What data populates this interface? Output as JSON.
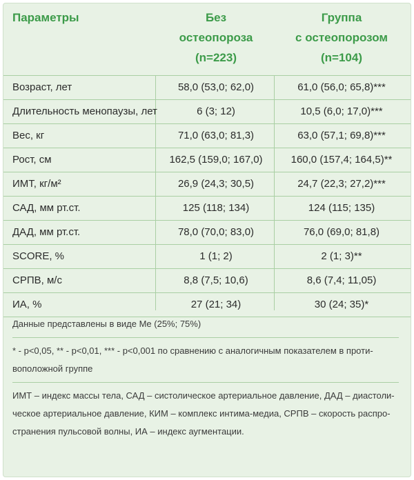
{
  "header": {
    "param": "Параметры",
    "col1": [
      "Без",
      "остеопороза",
      "(n=223)"
    ],
    "col2": [
      "Группа",
      "с остеопорозом",
      "(n=104)"
    ]
  },
  "rows": [
    {
      "param": "Возраст, лет",
      "v1": "58,0 (53,0; 62,0)",
      "v2": "61,0 (56,0; 65,8)***"
    },
    {
      "param": "Длительность менопаузы, лет",
      "v1": "6 (3; 12)",
      "v2": "10,5 (6,0; 17,0)***"
    },
    {
      "param": "Вес, кг",
      "v1": "71,0 (63,0; 81,3)",
      "v2": "63,0 (57,1; 69,8)***"
    },
    {
      "param": "Рост, см",
      "v1": "162,5 (159,0; 167,0)",
      "v2": "160,0 (157,4; 164,5)**"
    },
    {
      "param": "ИМТ, кг/м²",
      "v1": "26,9 (24,3; 30,5)",
      "v2": "24,7 (22,3; 27,2)***"
    },
    {
      "param": "САД, мм рт.ст.",
      "v1": "125 (118; 134)",
      "v2": "124 (115; 135)"
    },
    {
      "param": "ДАД, мм рт.ст.",
      "v1": "78,0 (70,0; 83,0)",
      "v2": "76,0 (69,0; 81,8)"
    },
    {
      "param": "SCORE, %",
      "v1": "1 (1; 2)",
      "v2": "2 (1; 3)**"
    },
    {
      "param": "СРПВ, м/с",
      "v1": "8,8 (7,5; 10,6)",
      "v2": "8,6 (7,4; 11,05)"
    },
    {
      "param": "ИА, %",
      "v1": "27 (21; 34)",
      "v2": "30 (24; 35)*"
    }
  ],
  "notes": {
    "data_format": "Данные представлены в виде Me (25%; 75%)",
    "significance_1": "* - p<0,05, ** - p<0,01, *** - p<0,001 по сравнению с аналогичным показателем в проти-",
    "significance_2": "воположной группе",
    "abbr_1": "ИМТ – индекс массы тела, САД – систолическое артериальное давление, ДАД – диастоли-",
    "abbr_2": "ческое артериальное давление, КИМ – комплекс интима-медиа, СРПВ – скорость распро-",
    "abbr_3": "странения пульсовой волны, ИА – индекс аугментации."
  },
  "colors": {
    "header_text": "#3c9b49",
    "background": "#e8f2e5",
    "rule": "#a9cfa3"
  }
}
